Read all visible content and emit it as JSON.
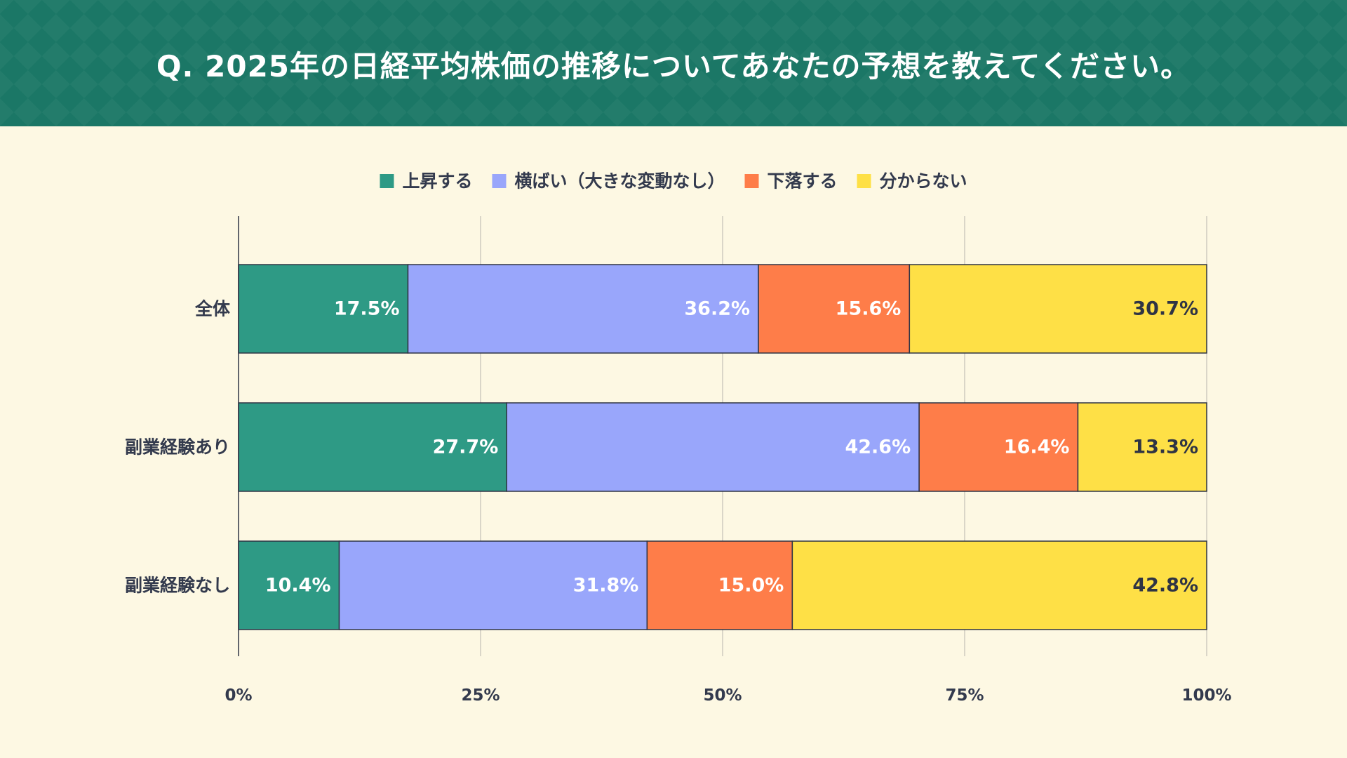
{
  "header": {
    "title": "Q. 2025年の日経平均株価の推移についてあなたの予想を教えてください。",
    "background": "#1b7766"
  },
  "chart_data": {
    "type": "bar",
    "orientation": "horizontal",
    "stacked": true,
    "title": "Q. 2025年の日経平均株価の推移についてあなたの予想を教えてください。",
    "categories": [
      "全体",
      "副業経験あり",
      "副業経験なし"
    ],
    "series": [
      {
        "name": "上昇する",
        "color": "#2e9a85",
        "label_color": "#ffffff",
        "values": [
          17.5,
          27.7,
          10.4
        ]
      },
      {
        "name": "横ばい（大きな変動なし）",
        "color": "#99a6fb",
        "label_color": "#ffffff",
        "values": [
          36.2,
          42.6,
          31.8
        ]
      },
      {
        "name": "下落する",
        "color": "#fe7d49",
        "label_color": "#ffffff",
        "values": [
          15.6,
          16.4,
          15.0
        ]
      },
      {
        "name": "分からない",
        "color": "#fee046",
        "label_color": "#2f3444",
        "values": [
          30.7,
          13.3,
          42.8
        ]
      }
    ],
    "data_label_suffix": "%",
    "xlim": [
      0,
      100
    ],
    "x_ticks": [
      0,
      25,
      50,
      75,
      100
    ],
    "x_tick_labels": [
      "0%",
      "25%",
      "50%",
      "75%",
      "100%"
    ],
    "grid": true,
    "legend_position": "top-center",
    "xlabel": "",
    "ylabel": ""
  }
}
